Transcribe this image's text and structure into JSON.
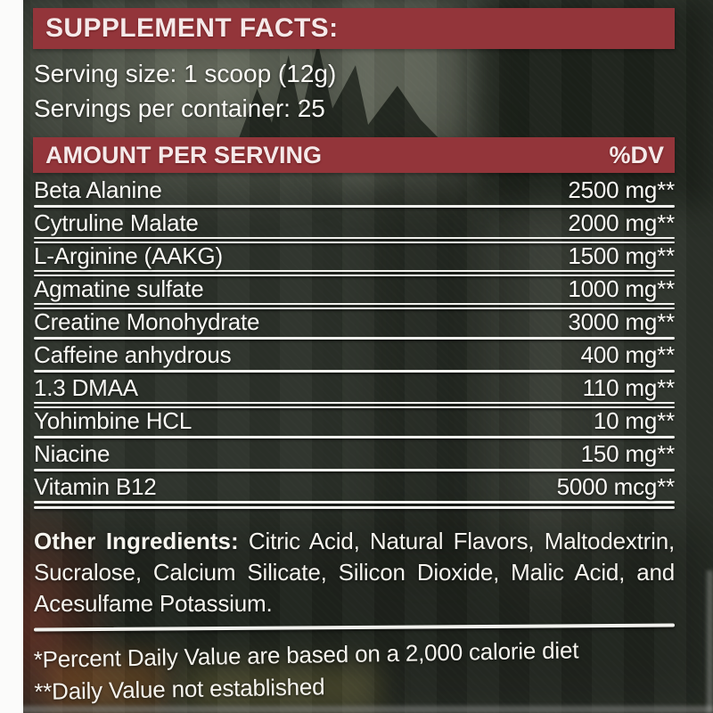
{
  "banner": {
    "title": "SUPPLEMENT FACTS:"
  },
  "serving": {
    "size": "Serving size: 1 scoop (12g)",
    "per_container": "Servings per container: 25"
  },
  "table": {
    "amount_header": "AMOUNT PER SERVING",
    "dv_header": "%DV",
    "rows": [
      {
        "name": "Beta Alanine",
        "amount": "2500 mg**"
      },
      {
        "name": "Cytruline Malate",
        "amount": "2000 mg**"
      },
      {
        "name": "L-Arginine (AAKG)",
        "amount": "1500 mg**"
      },
      {
        "name": "Agmatine sulfate",
        "amount": "1000 mg**"
      },
      {
        "name": "Creatine Monohydrate",
        "amount": "3000 mg**"
      },
      {
        "name": "Caffeine anhydrous",
        "amount": "400 mg**"
      },
      {
        "name": "1.3 DMAA",
        "amount": "110 mg**"
      },
      {
        "name": "Yohimbine HCL",
        "amount": "10 mg**"
      },
      {
        "name": "Niacine",
        "amount": "150 mg**"
      },
      {
        "name": "Vitamin B12",
        "amount": "5000 mcg**"
      }
    ]
  },
  "other_ingredients": {
    "label": "Other Ingredients:",
    "text": "Citric Acid, Natural Flavors, Maltodextrin, Sucralose, Calcium Silicate, Silicon Dioxide, Malic Acid, and Acesulfame Potassium."
  },
  "footnotes": [
    "*Percent Daily Value are based on a 2,000 calorie diet",
    "**Daily Value not established"
  ],
  "colors": {
    "banner_red": "#93353a",
    "label_text": "#f6f4ee"
  }
}
